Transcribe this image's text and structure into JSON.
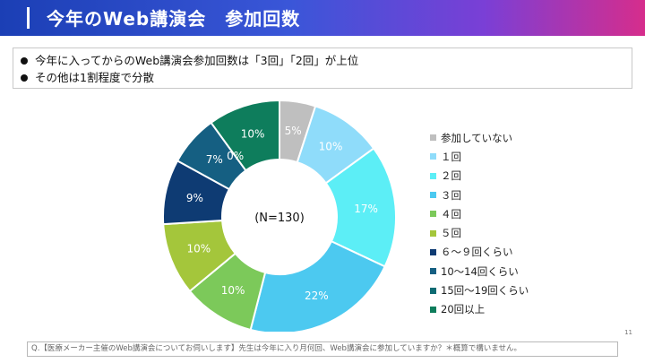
{
  "header": {
    "title": "今年のWeb講演会　参加回数"
  },
  "summary": {
    "lines": [
      "今年に入ってからのWeb講演会参加回数は「3回」「2回」が上位",
      "その他は1割程度で分散"
    ]
  },
  "chart_data": {
    "type": "pie",
    "variant": "donut",
    "center_label": "(N=130)",
    "categories": [
      "参加していない",
      "１回",
      "２回",
      "３回",
      "４回",
      "５回",
      "６～９回くらい",
      "10～14回くらい",
      "15回～19回くらい",
      "20回以上"
    ],
    "values": [
      5,
      10,
      17,
      22,
      10,
      10,
      9,
      7,
      0,
      10
    ],
    "data_labels": [
      "5%",
      "10%",
      "17%",
      "22%",
      "10%",
      "10%",
      "9%",
      "7%",
      "0%",
      "10%"
    ],
    "colors": [
      "#bfbfbf",
      "#8fdcfa",
      "#5ceef6",
      "#4cc9f0",
      "#7cc95a",
      "#a4c63b",
      "#0e3b73",
      "#155f82",
      "#0e6b73",
      "#0e7d5c"
    ],
    "label_colors": [
      "#ffffff",
      "#ffffff",
      "#ffffff",
      "#ffffff",
      "#ffffff",
      "#ffffff",
      "#ffffff",
      "#ffffff",
      "#ffffff",
      "#ffffff"
    ],
    "legend_position": "right"
  },
  "page_number": "11",
  "footnote": "Q.【医療メーカー主催のWeb講演会についてお伺いします】先生は今年に入り月何回、Web講演会に参加していますか？＊概算で構いません。"
}
